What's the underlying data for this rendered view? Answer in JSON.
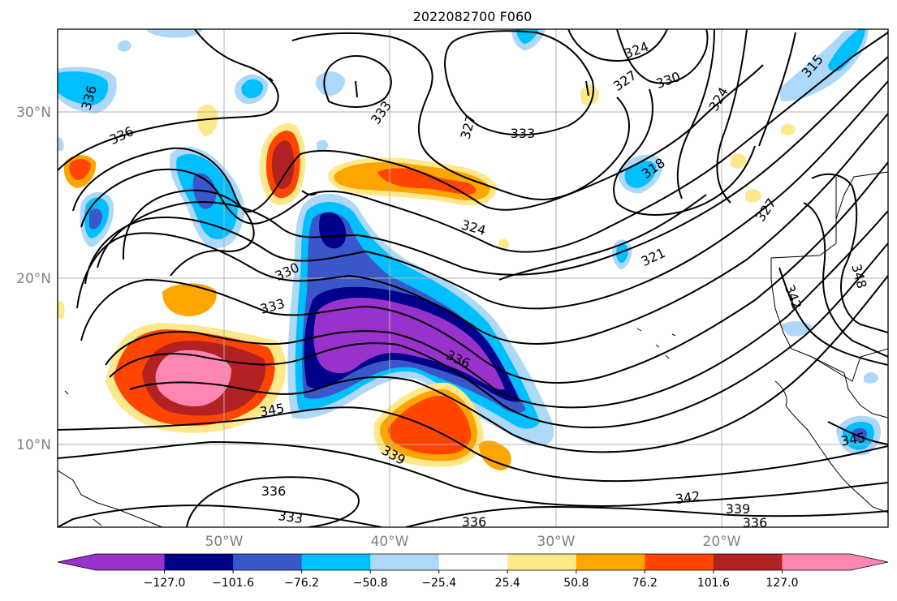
{
  "title": "2022082700 F060",
  "latitude_labels": [
    "30°N",
    "20°N",
    "10°N"
  ],
  "longitude_labels": [
    "50°W",
    "40°W",
    "30°W",
    "20°W"
  ],
  "colorbar": {
    "tick_labels": [
      "−127.0",
      "−101.6",
      "−76.2",
      "−50.8",
      "−25.4",
      "25.4",
      "50.8",
      "76.2",
      "101.6",
      "127.0"
    ],
    "colors": [
      "#9932cc",
      "#00008b",
      "#3a57c9",
      "#00bfff",
      "#add8f7",
      "#ffffff",
      "#ffe88a",
      "#ffa500",
      "#ff4500",
      "#b22222",
      "#ff85b3"
    ]
  },
  "contour_labels": [
    "336",
    "336",
    "333",
    "327",
    "333",
    "324",
    "327",
    "330",
    "324",
    "315",
    "318",
    "327",
    "324",
    "321",
    "348",
    "342",
    "330",
    "333",
    "336",
    "345",
    "339",
    "336",
    "333",
    "336",
    "342",
    "339",
    "336",
    "345"
  ],
  "map": {
    "projection": "PlateCarree",
    "lon_range_deg": [
      -60,
      -10
    ],
    "lat_range_deg": [
      5,
      35
    ],
    "fill_field_levels": [
      -127.0,
      -101.6,
      -76.2,
      -50.8,
      -25.4,
      25.4,
      50.8,
      76.2,
      101.6,
      127.0
    ],
    "contour_color": "#000000",
    "gridline_color": "#b0b0b0"
  }
}
